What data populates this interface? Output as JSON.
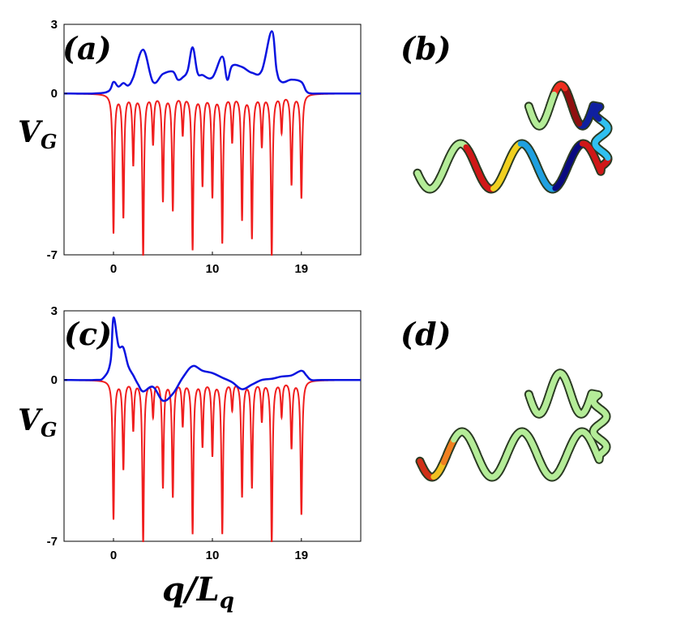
{
  "figure": {
    "panel_labels": [
      "(a)",
      "(b)",
      "(c)",
      "(d)"
    ],
    "ylabel_main": "V",
    "ylabel_sub": "G",
    "xlabel_main": "q/L",
    "xlabel_sub": "q",
    "colors": {
      "blue_curve": "#0a14e0",
      "red_curve": "#f01e1e",
      "helix_green": "#b4ec98",
      "helix_dark": "#0a0a80",
      "helix_red": "#c81414"
    }
  },
  "chart_data": [
    {
      "id": "a",
      "type": "line",
      "xlim": [
        -5,
        25
      ],
      "ylim": [
        -7,
        3
      ],
      "xticks": [
        0,
        10,
        19
      ],
      "yticks": [
        3,
        0,
        -7
      ],
      "xtick_labels": [
        "0",
        "10",
        "19"
      ],
      "ytick_labels": [
        "3",
        "0",
        "-7"
      ],
      "series": [
        {
          "color": "blue",
          "x": [
            -5,
            -2,
            -0.5,
            0,
            0.5,
            1,
            1.5,
            2,
            3,
            4,
            5,
            6,
            6.5,
            7,
            7.5,
            8,
            8.5,
            9,
            10,
            11,
            11.5,
            12,
            13,
            14,
            15,
            16,
            16.5,
            17,
            18,
            19,
            19.5,
            20,
            21,
            25
          ],
          "y": [
            0,
            0,
            0.1,
            0.5,
            0.3,
            0.45,
            0.35,
            0.7,
            1.9,
            0.5,
            0.85,
            0.95,
            0.6,
            0.7,
            1.0,
            2.0,
            0.9,
            0.8,
            0.7,
            1.6,
            0.6,
            1.2,
            1.15,
            0.9,
            1.0,
            2.7,
            1.0,
            0.5,
            0.6,
            0.5,
            0.1,
            0,
            0,
            0
          ]
        },
        {
          "color": "red",
          "baseline": 0,
          "dips": [
            {
              "x": 0,
              "depth": -6.0
            },
            {
              "x": 1,
              "depth": -5.3
            },
            {
              "x": 2,
              "depth": -3.0
            },
            {
              "x": 3,
              "depth": -7.0
            },
            {
              "x": 4,
              "depth": -2.1
            },
            {
              "x": 5,
              "depth": -4.6
            },
            {
              "x": 6,
              "depth": -5.0
            },
            {
              "x": 7,
              "depth": -1.7
            },
            {
              "x": 8,
              "depth": -6.7
            },
            {
              "x": 9,
              "depth": -3.9
            },
            {
              "x": 10,
              "depth": -4.4
            },
            {
              "x": 11,
              "depth": -6.4
            },
            {
              "x": 12,
              "depth": -2.0
            },
            {
              "x": 13,
              "depth": -5.4
            },
            {
              "x": 14,
              "depth": -6.2
            },
            {
              "x": 15,
              "depth": -2.2
            },
            {
              "x": 16,
              "depth": -7.0
            },
            {
              "x": 17,
              "depth": -1.6
            },
            {
              "x": 18,
              "depth": -3.9
            },
            {
              "x": 19,
              "depth": -4.5
            }
          ]
        }
      ]
    },
    {
      "id": "c",
      "type": "line",
      "xlim": [
        -5,
        25
      ],
      "ylim": [
        -7,
        3
      ],
      "xticks": [
        0,
        10,
        19
      ],
      "yticks": [
        3,
        0,
        -7
      ],
      "xtick_labels": [
        "0",
        "10",
        "19"
      ],
      "ytick_labels": [
        "3",
        "0",
        "-7"
      ],
      "series": [
        {
          "color": "blue",
          "x": [
            -5,
            -2,
            -1,
            -0.3,
            0,
            0.5,
            1,
            1.5,
            2,
            2.5,
            3,
            4,
            5,
            6,
            7,
            8,
            9,
            10,
            11,
            12,
            13,
            14,
            15,
            16,
            17,
            18,
            19,
            19.5,
            20,
            21,
            25
          ],
          "y": [
            0,
            0,
            0.1,
            0.8,
            2.7,
            1.5,
            1.4,
            0.6,
            0.2,
            -0.2,
            -0.5,
            -0.3,
            -0.9,
            -0.6,
            0.1,
            0.6,
            0.4,
            0.3,
            0.1,
            -0.1,
            -0.4,
            -0.2,
            0.0,
            0.05,
            0.15,
            0.2,
            0.4,
            0.2,
            0,
            0,
            0
          ]
        },
        {
          "color": "red",
          "baseline": 0,
          "dips": [
            {
              "x": 0,
              "depth": -6.0
            },
            {
              "x": 1,
              "depth": -3.8
            },
            {
              "x": 2,
              "depth": -2.1
            },
            {
              "x": 3,
              "depth": -7.0
            },
            {
              "x": 4,
              "depth": -1.5
            },
            {
              "x": 5,
              "depth": -4.6
            },
            {
              "x": 6,
              "depth": -5.0
            },
            {
              "x": 7,
              "depth": -1.9
            },
            {
              "x": 8,
              "depth": -6.6
            },
            {
              "x": 9,
              "depth": -2.8
            },
            {
              "x": 10,
              "depth": -3.2
            },
            {
              "x": 11,
              "depth": -6.6
            },
            {
              "x": 12,
              "depth": -1.2
            },
            {
              "x": 13,
              "depth": -5.0
            },
            {
              "x": 14,
              "depth": -4.6
            },
            {
              "x": 15,
              "depth": -1.7
            },
            {
              "x": 16,
              "depth": -7.0
            },
            {
              "x": 17,
              "depth": -1.5
            },
            {
              "x": 18,
              "depth": -2.9
            },
            {
              "x": 19,
              "depth": -5.8
            }
          ]
        }
      ]
    }
  ]
}
